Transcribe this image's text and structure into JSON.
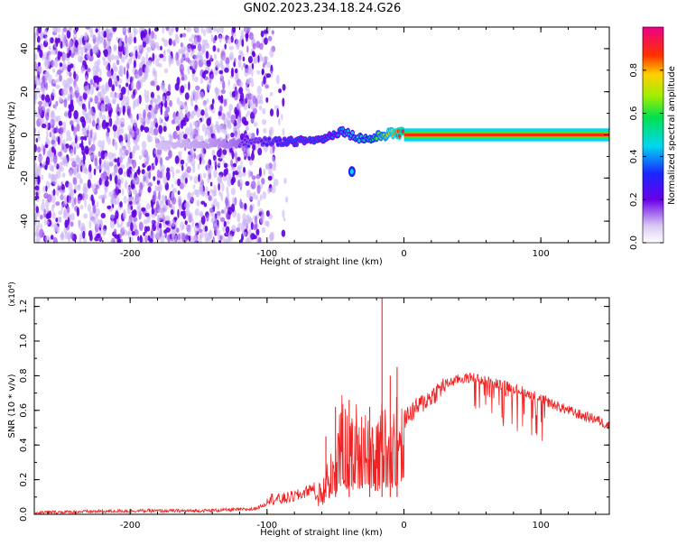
{
  "figure": {
    "title": "GN02.2023.234.18.24.G26"
  },
  "chart_data": [
    {
      "type": "heatmap",
      "title": "GN02.2023.234.18.24.G26",
      "xlabel": "Height of straight line (km)",
      "ylabel": "Frequency (Hz)",
      "xlim": [
        -270,
        150
      ],
      "ylim": [
        -50,
        50
      ],
      "x_ticks": [
        -200,
        -100,
        0,
        100
      ],
      "y_ticks": [
        -40,
        -20,
        0,
        20,
        40
      ],
      "grid": false,
      "colorbar": {
        "label": "Normalized spectral amplitude",
        "range": [
          0,
          1
        ],
        "ticks": [
          0.0,
          0.2,
          0.4,
          0.6,
          0.8
        ],
        "colormap": "rainbow (white-violet-blue-cyan-green-yellow-red-magenta)"
      },
      "features": [
        {
          "name": "noise",
          "x_range": [
            -270,
            -85
          ],
          "freq_range": [
            -50,
            50
          ],
          "amplitude": 0.1
        },
        {
          "name": "signal_trace",
          "x": [
            -180,
            -140,
            -120,
            -100,
            -80,
            -60,
            -45,
            -35,
            -25,
            -15,
            -5,
            0,
            50,
            100,
            150
          ],
          "freq": [
            -5,
            -4,
            -4,
            -3,
            -3,
            -2,
            2,
            -1,
            -2,
            0,
            1,
            0,
            0,
            0,
            0
          ],
          "amplitude": [
            0.15,
            0.2,
            0.25,
            0.3,
            0.35,
            0.35,
            0.4,
            0.45,
            0.55,
            0.7,
            0.85,
            0.95,
            0.95,
            0.95,
            0.95
          ]
        },
        {
          "name": "side_blob",
          "x": -38,
          "freq": -17,
          "amplitude": 0.3
        }
      ]
    },
    {
      "type": "line",
      "xlabel": "Height of straight line (km)",
      "ylabel": "SNR (10 * v/v)",
      "y_multiplier": "(x10⁴)",
      "xlim": [
        -270,
        150
      ],
      "ylim": [
        0,
        1.25
      ],
      "x_ticks": [
        -200,
        -100,
        0,
        100
      ],
      "y_ticks": [
        0.0,
        0.2,
        0.4,
        0.6,
        0.8,
        1.0,
        1.2
      ],
      "grid": false,
      "color": "#ee2222",
      "x": [
        -270,
        -200,
        -150,
        -110,
        -100,
        -90,
        -75,
        -60,
        -50,
        -45,
        -40,
        -35,
        -30,
        -25,
        -20,
        -15,
        -10,
        -5,
        0,
        10,
        20,
        30,
        40,
        50,
        60,
        70,
        80,
        90,
        100,
        110,
        120,
        130,
        140,
        150
      ],
      "y": [
        0.01,
        0.02,
        0.02,
        0.03,
        0.06,
        0.05,
        0.08,
        0.15,
        0.35,
        0.55,
        0.4,
        0.5,
        0.45,
        0.5,
        0.4,
        0.55,
        0.45,
        0.55,
        0.55,
        0.62,
        0.68,
        0.75,
        0.78,
        0.79,
        0.77,
        0.75,
        0.73,
        0.7,
        0.67,
        0.63,
        0.6,
        0.57,
        0.55,
        0.51
      ],
      "spikes": [
        {
          "x": -57,
          "y": 0.45
        },
        {
          "x": -50,
          "y": 0.62
        },
        {
          "x": -40,
          "y": 0.66
        },
        {
          "x": -25,
          "y": 0.62
        },
        {
          "x": -16,
          "y": 1.25
        },
        {
          "x": -10,
          "y": 0.8
        },
        {
          "x": -5,
          "y": 0.85
        }
      ]
    }
  ]
}
